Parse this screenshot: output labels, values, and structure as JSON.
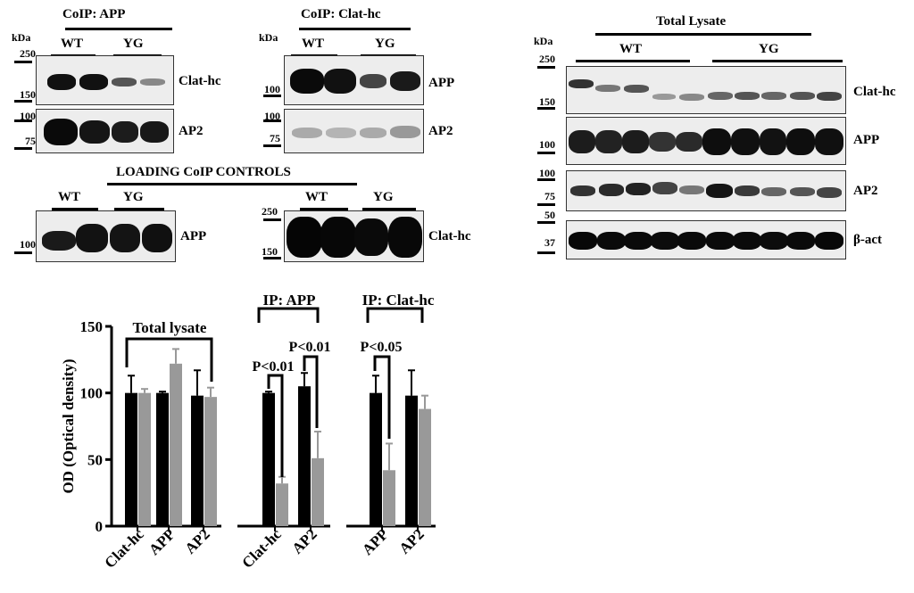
{
  "blots": {
    "kda_unit": "kDa",
    "coip_app": {
      "title": "CoIP: APP",
      "wt": "WT",
      "yg": "YG",
      "markers": [
        "250",
        "150",
        "100",
        "75"
      ],
      "row1_label": "Clat-hc",
      "row2_label": "AP2"
    },
    "coip_clat": {
      "title": "CoIP: Clat-hc",
      "wt": "WT",
      "yg": "YG",
      "markers": [
        "100",
        "100",
        "75"
      ],
      "row1_label": "APP",
      "row2_label": "AP2"
    },
    "loading": {
      "title": "LOADING CoIP CONTROLS",
      "wt_left": "WT",
      "yg_left": "YG",
      "wt_right": "WT",
      "yg_right": "YG",
      "marker_left": "100",
      "markers_right": [
        "250",
        "150"
      ],
      "left_label": "APP",
      "right_label": "Clat-hc"
    },
    "total": {
      "title": "Total Lysate",
      "wt": "WT",
      "yg": "YG",
      "markers": [
        "250",
        "150",
        "100",
        "100",
        "75",
        "50",
        "37"
      ],
      "labels": [
        "Clat-hc",
        "APP",
        "AP2",
        "β-act"
      ]
    }
  },
  "chart_data": {
    "type": "bar",
    "ylabel": "OD (Optical density)",
    "ylim": [
      0,
      150
    ],
    "yticks": [
      0,
      50,
      100,
      150
    ],
    "categories": [
      "Clat-hc",
      "APP",
      "AP2",
      "Clat-hc",
      "AP2",
      "APP",
      "AP2"
    ],
    "series": [
      {
        "color": "#000000",
        "values": [
          100,
          100,
          98,
          100,
          105,
          100,
          98
        ],
        "errors": [
          13,
          1,
          19,
          1,
          10,
          13,
          19
        ]
      },
      {
        "color": "#999999",
        "values": [
          100,
          122,
          97,
          32,
          51,
          42,
          88
        ],
        "errors": [
          3,
          11,
          7,
          5,
          20,
          20,
          10
        ]
      }
    ],
    "group_labels": [
      "Total lysate",
      "IP: APP",
      "IP: Clat-hc"
    ],
    "significance": [
      "P<0.01",
      "P<0.01",
      "P<0.05"
    ]
  }
}
